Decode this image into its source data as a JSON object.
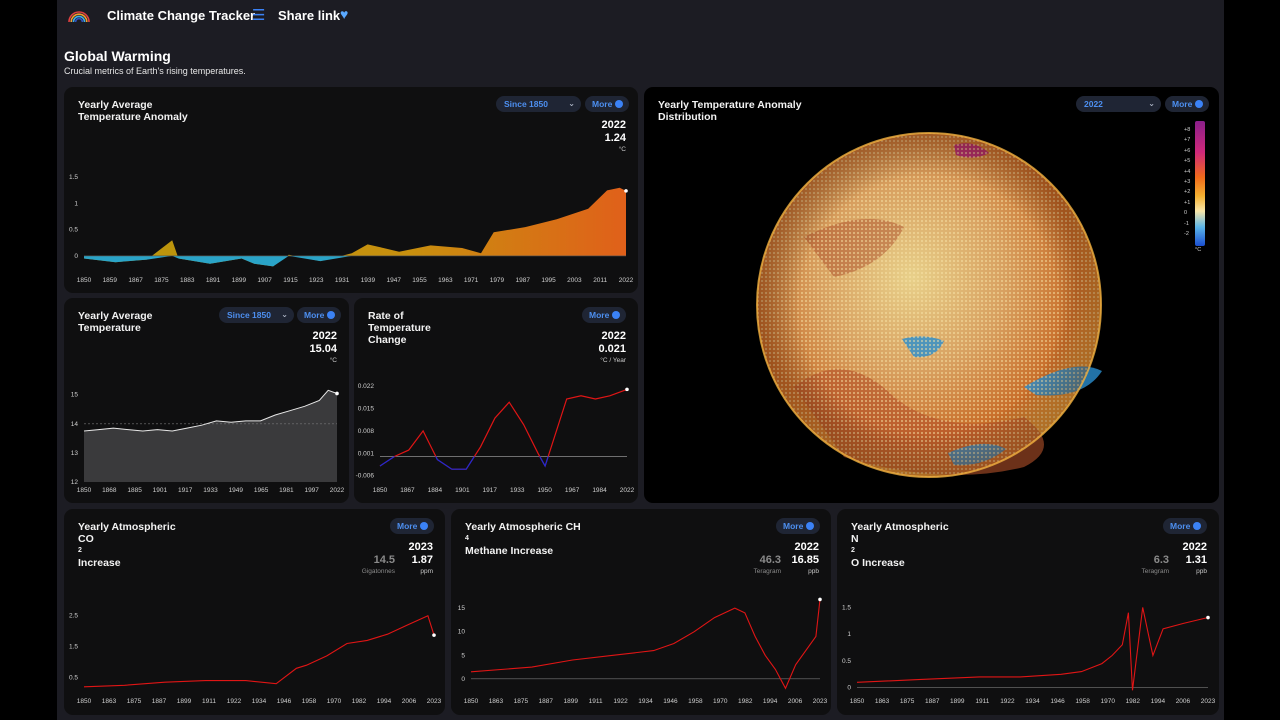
{
  "app": {
    "title": "Climate Change Tracker",
    "share_label": "Share link",
    "logo_icon": "rainbow-logo-icon",
    "menu_icon": "hamburger-menu-icon",
    "heart_icon": "blue-heart-icon"
  },
  "section": {
    "title": "Global Warming",
    "subtitle": "Crucial metrics of Earth's rising temperatures."
  },
  "colors": {
    "accent": "#3b82f6",
    "panel": "#0f0f10",
    "background": "#1c1c23",
    "warm": "#d97a1a",
    "cool": "#2aa4c8",
    "red_line": "#e01515"
  },
  "panels": {
    "anomaly": {
      "title_lines": [
        "Yearly Average",
        "Temperature Anomaly"
      ],
      "dropdown": "Since 1850",
      "more": "More",
      "stat_year": "2022",
      "stat_value": "1.24",
      "stat_unit": "°C"
    },
    "avg_temp": {
      "title_lines": [
        "Yearly Average",
        "Temperature"
      ],
      "dropdown": "Since 1850",
      "more": "More",
      "stat_year": "2022",
      "stat_value": "15.04",
      "stat_unit": "°C"
    },
    "rate": {
      "title_lines": [
        "Rate of",
        "Temperature",
        "Change"
      ],
      "more": "More",
      "stat_year": "2022",
      "stat_value": "0.021",
      "stat_unit": "°C / Year"
    },
    "globe": {
      "title_lines": [
        "Yearly Temperature Anomaly",
        "Distribution"
      ],
      "dropdown": "2022",
      "more": "More",
      "colorbar_labels": [
        "+8",
        "+7",
        "+6",
        "+5",
        "+4",
        "+3",
        "+2",
        "+1",
        "0",
        "-1",
        "-2"
      ],
      "colorbar_unit": "°C"
    },
    "co2": {
      "title_line1": "Yearly Atmospheric",
      "title_line2_pre": "CO",
      "title_line2_sub": "2",
      "title_line2_post": " Increase",
      "more": "More",
      "stat_year": "2023",
      "alt_value": "14.5",
      "alt_unit": "Gigatonnes",
      "stat_value": "1.87",
      "stat_unit": "ppm"
    },
    "ch4": {
      "title_line1_pre": "Yearly Atmospheric CH",
      "title_line1_sub": "4",
      "title_line2": "Methane Increase",
      "more": "More",
      "stat_year": "2022",
      "alt_value": "46.3",
      "alt_unit": "Teragram",
      "stat_value": "16.85",
      "stat_unit": "ppb"
    },
    "n2o": {
      "title_line1": "Yearly Atmospheric",
      "title_line2_pre": "N",
      "title_line2_sub": "2",
      "title_line2_post": "O Increase",
      "more": "More",
      "stat_year": "2022",
      "alt_value": "6.3",
      "alt_unit": "Teragram",
      "stat_value": "1.31",
      "stat_unit": "ppb"
    }
  },
  "chart_data": [
    {
      "id": "anomaly",
      "type": "area",
      "x_ticks": [
        "1850",
        "1859",
        "1867",
        "1875",
        "1883",
        "1891",
        "1899",
        "1907",
        "1915",
        "1923",
        "1931",
        "1939",
        "1947",
        "1955",
        "1963",
        "1971",
        "1979",
        "1987",
        "1995",
        "2003",
        "2011",
        "2022"
      ],
      "y_ticks": [
        "1.5",
        "1",
        "0.5",
        "0"
      ],
      "ylim": [
        -0.25,
        1.6
      ],
      "x": [
        1850,
        1860,
        1870,
        1878,
        1880,
        1890,
        1900,
        1904,
        1910,
        1915,
        1925,
        1935,
        1940,
        1945,
        1950,
        1960,
        1970,
        1976,
        1980,
        1990,
        2000,
        2010,
        2016,
        2020,
        2022
      ],
      "values": [
        -0.05,
        -0.12,
        -0.07,
        0.3,
        -0.05,
        -0.15,
        -0.05,
        -0.15,
        -0.2,
        0.02,
        -0.1,
        0.05,
        0.22,
        0.15,
        0.08,
        0.2,
        0.15,
        0.05,
        0.45,
        0.55,
        0.7,
        0.9,
        1.25,
        1.3,
        1.24
      ]
    },
    {
      "id": "avg_temp",
      "type": "line",
      "x_ticks": [
        "1850",
        "1868",
        "1885",
        "1901",
        "1917",
        "1933",
        "1949",
        "1965",
        "1981",
        "1997",
        "2022"
      ],
      "y_ticks": [
        "15",
        "14",
        "13",
        "12"
      ],
      "ylim": [
        12,
        15.4
      ],
      "x": [
        1850,
        1860,
        1870,
        1880,
        1890,
        1900,
        1910,
        1920,
        1930,
        1940,
        1950,
        1960,
        1970,
        1980,
        1990,
        2000,
        2010,
        2016,
        2022
      ],
      "values": [
        13.75,
        13.8,
        13.85,
        13.8,
        13.75,
        13.8,
        13.75,
        13.85,
        13.95,
        14.1,
        14.05,
        14.1,
        14.1,
        14.3,
        14.45,
        14.6,
        14.8,
        15.15,
        15.04
      ],
      "reference_line": 14.0
    },
    {
      "id": "rate",
      "type": "line",
      "x_ticks": [
        "1850",
        "1867",
        "1884",
        "1901",
        "1917",
        "1933",
        "1950",
        "1967",
        "1984",
        "2022"
      ],
      "y_ticks": [
        "0.022",
        "0.015",
        "0.008",
        "0.001",
        "-0.006"
      ],
      "ylim": [
        -0.008,
        0.023
      ],
      "x": [
        1850,
        1860,
        1870,
        1880,
        1890,
        1900,
        1910,
        1920,
        1930,
        1940,
        1950,
        1960,
        1965,
        1970,
        1980,
        1990,
        2000,
        2010,
        2022
      ],
      "values": [
        -0.003,
        0.0,
        0.002,
        0.008,
        -0.001,
        -0.004,
        -0.004,
        0.003,
        0.012,
        0.017,
        0.01,
        0.001,
        -0.003,
        0.004,
        0.018,
        0.019,
        0.018,
        0.019,
        0.021
      ]
    },
    {
      "id": "co2",
      "type": "line",
      "x_ticks": [
        "1850",
        "1863",
        "1875",
        "1887",
        "1899",
        "1911",
        "1922",
        "1934",
        "1946",
        "1958",
        "1970",
        "1982",
        "1994",
        "2006",
        "2023"
      ],
      "y_ticks": [
        "2.5",
        "1.5",
        "0.5"
      ],
      "ylim": [
        0,
        3.2
      ],
      "x": [
        1850,
        1870,
        1890,
        1910,
        1930,
        1945,
        1955,
        1960,
        1970,
        1980,
        1990,
        2000,
        2010,
        2020,
        2023
      ],
      "values": [
        0.2,
        0.25,
        0.35,
        0.4,
        0.4,
        0.3,
        0.8,
        0.9,
        1.2,
        1.6,
        1.7,
        1.9,
        2.2,
        2.5,
        1.87
      ]
    },
    {
      "id": "ch4",
      "type": "line",
      "x_ticks": [
        "1850",
        "1863",
        "1875",
        "1887",
        "1899",
        "1911",
        "1922",
        "1934",
        "1946",
        "1958",
        "1970",
        "1982",
        "1994",
        "2006",
        "2023"
      ],
      "y_ticks": [
        "15",
        "10",
        "5",
        "0"
      ],
      "ylim": [
        -3,
        18
      ],
      "x": [
        1850,
        1880,
        1900,
        1920,
        1940,
        1950,
        1960,
        1970,
        1980,
        1985,
        1990,
        1995,
        2000,
        2005,
        2010,
        2020,
        2022
      ],
      "values": [
        1.5,
        2.5,
        4,
        5,
        6,
        7.5,
        10,
        13,
        15,
        14,
        9,
        5,
        2,
        -2,
        3,
        9,
        16.85
      ]
    },
    {
      "id": "n2o",
      "type": "line",
      "x_ticks": [
        "1850",
        "1863",
        "1875",
        "1887",
        "1899",
        "1911",
        "1922",
        "1934",
        "1946",
        "1958",
        "1970",
        "1982",
        "1994",
        "2006",
        "2023"
      ],
      "y_ticks": [
        "1.5",
        "1",
        "0.5",
        "0"
      ],
      "ylim": [
        -0.1,
        1.75
      ],
      "x": [
        1850,
        1880,
        1910,
        1930,
        1950,
        1960,
        1970,
        1975,
        1980,
        1983,
        1985,
        1990,
        1995,
        2000,
        2010,
        2022
      ],
      "values": [
        0.1,
        0.15,
        0.2,
        0.2,
        0.25,
        0.3,
        0.45,
        0.6,
        0.8,
        1.4,
        -0.05,
        1.5,
        0.6,
        1.1,
        1.2,
        1.31
      ]
    }
  ]
}
